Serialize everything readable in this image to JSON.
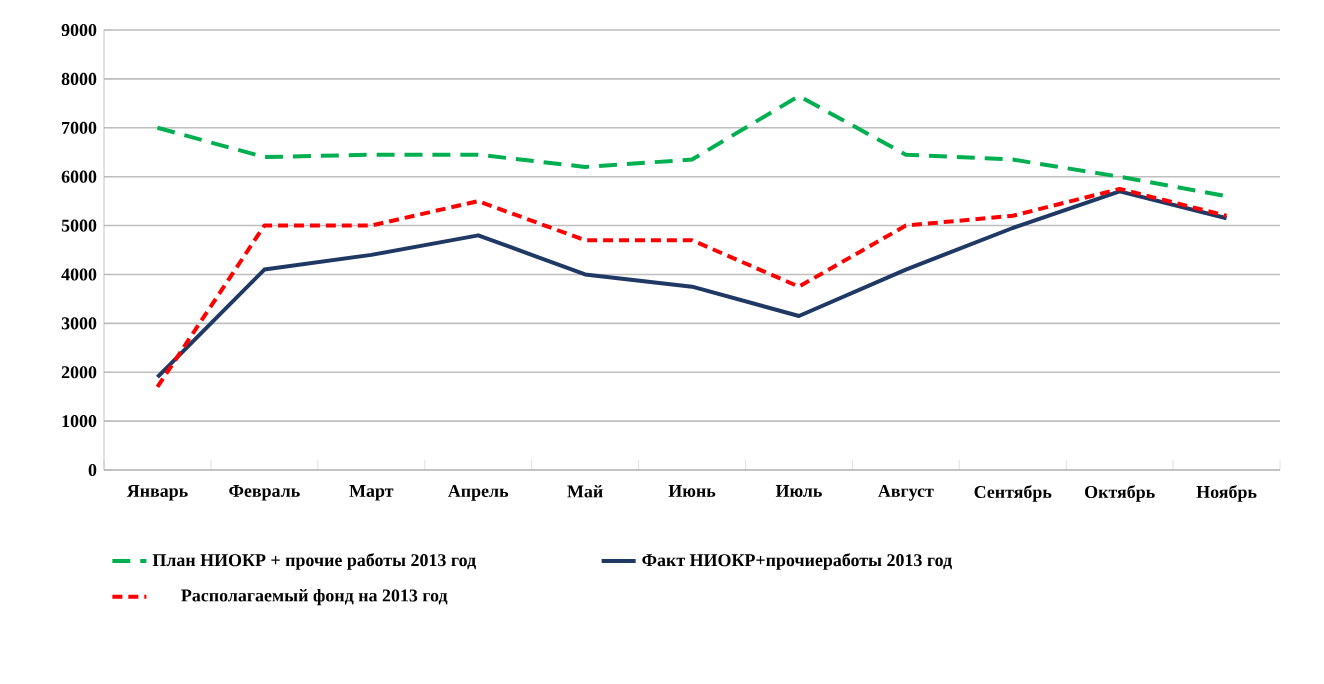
{
  "chart_data": {
    "type": "line",
    "categories": [
      "Январь",
      "Февраль",
      "Март",
      "Апрель",
      "Май",
      "Июнь",
      "Июль",
      "Август",
      "Сентябрь",
      "Октябрь",
      "Ноябрь"
    ],
    "series": [
      {
        "name": "План НИОКР + прочие работы 2013 год",
        "color": "#00b050",
        "line_style": "dashed",
        "values": [
          7000,
          6400,
          6450,
          6450,
          6200,
          6350,
          7650,
          6450,
          6350,
          6000,
          5600
        ]
      },
      {
        "name": "Факт НИОКР+прочиеработы 2013 год",
        "color": "#1f3864",
        "line_style": "solid",
        "values": [
          1900,
          4100,
          4400,
          4800,
          4000,
          3750,
          3150,
          4100,
          4950,
          5700,
          5150
        ]
      },
      {
        "name": "Располагаемый фонд на 2013 год",
        "color": "#ff0000",
        "line_style": "dotted",
        "values": [
          1700,
          5000,
          5000,
          5500,
          4700,
          4700,
          3750,
          5000,
          5200,
          5750,
          5200
        ]
      }
    ],
    "ylim": [
      0,
      9000
    ],
    "yticks": [
      0,
      1000,
      2000,
      3000,
      4000,
      5000,
      6000,
      7000,
      8000,
      9000
    ],
    "grid": "y",
    "legend": "bottom",
    "marker": "none"
  }
}
